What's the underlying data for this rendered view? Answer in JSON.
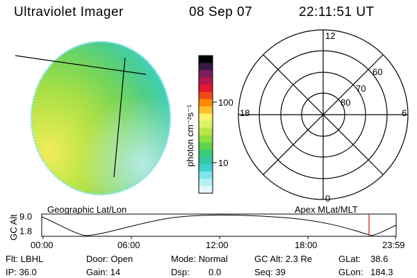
{
  "header": {
    "title": "Ultraviolet Imager",
    "date": "08 Sep 07",
    "time": "22:11:51 UT"
  },
  "colorbar": {
    "label": "photon cm⁻²s⁻¹",
    "ticks": [
      "100",
      "10"
    ],
    "colors": [
      "#000000",
      "#3a1845",
      "#7a1d5a",
      "#b0174b",
      "#e01830",
      "#f04a18",
      "#ff8a00",
      "#ffbe2a",
      "#fff26a",
      "#dcf26a",
      "#b8e64a",
      "#8ede3e",
      "#5fd34e",
      "#3ccb78",
      "#35c7a6",
      "#3cd3d0",
      "#7ee4ea",
      "#b8f0f4",
      "#e4f8fa"
    ]
  },
  "polar": {
    "mlt_labels": [
      "12",
      "18",
      "6",
      "0"
    ],
    "lat_labels": [
      "60",
      "70",
      "80"
    ]
  },
  "timeline": {
    "left_label": "Geographic Lat/Lon",
    "right_label": "Apex MLat/MLT",
    "y_axis_label": "GC Alt",
    "y_ticks": [
      "9.0",
      "1.8"
    ],
    "x_ticks": [
      "00:00",
      "06:00",
      "12:00",
      "18:00",
      "23:59"
    ],
    "current_marker_color": "#c0392b"
  },
  "info": {
    "flt": "Flt: LBHL",
    "ip": "IP: 36.0",
    "door": "Door: Open",
    "gain": "Gain: 14",
    "mode": "Mode: Normal",
    "dsp_label": "Dsp:",
    "dsp_value": "0.0",
    "gc_alt": "GC Alt: 2.3 Re",
    "seq": "Seq: 39",
    "glat_label": "GLat:",
    "glat_value": "38.6",
    "glon_label": "GLon:",
    "glon_value": "184.3"
  }
}
